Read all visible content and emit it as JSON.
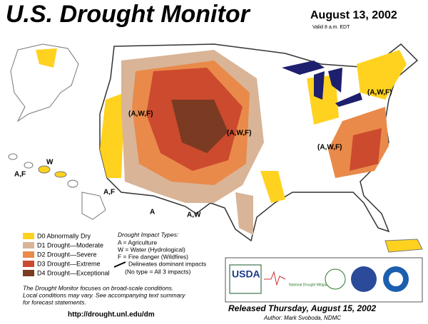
{
  "header": {
    "title": "U.S. Drought Monitor",
    "date": "August 13, 2002",
    "valid": "Valid 8 a.m. EDT"
  },
  "map_labels": [
    "(A,W,F)",
    "(A,W,F)",
    "(A,W,F)",
    "(A,W,F)",
    "A,F",
    "A,F",
    "W",
    "A",
    "A,W"
  ],
  "legend": {
    "items": [
      {
        "label": "D0 Abnormally Dry",
        "color": "#ffd21f"
      },
      {
        "label": "D1 Drought—Moderate",
        "color": "#d9b497"
      },
      {
        "label": "D2 Drought—Severe",
        "color": "#e98a4a"
      },
      {
        "label": "D3 Drought—Extreme",
        "color": "#cc4a2e"
      },
      {
        "label": "D4 Drought—Exceptional",
        "color": "#7b3a22"
      }
    ]
  },
  "impacts": {
    "title": "Drought Impact Types:",
    "lines": [
      "A = Agriculture",
      "W = Water (Hydrological)",
      "F = Fire danger (Wildfires)"
    ],
    "line_note": "Delineates dominant impacts",
    "note": "(No type = All 3 impacts)"
  },
  "notes": [
    "The Drought Monitor focuses on broad-scale conditions.",
    "Local conditions may vary. See accompanying text summary",
    "for forecast statements."
  ],
  "url": "http://drought.unl.edu/dm",
  "footer": {
    "released": "Released Thursday, August 15, 2002",
    "author": "Author: Mark Svoboda, NDMC"
  },
  "logos": {
    "usda": "USDA",
    "ndmc": "National Drought Mitigation Center"
  }
}
